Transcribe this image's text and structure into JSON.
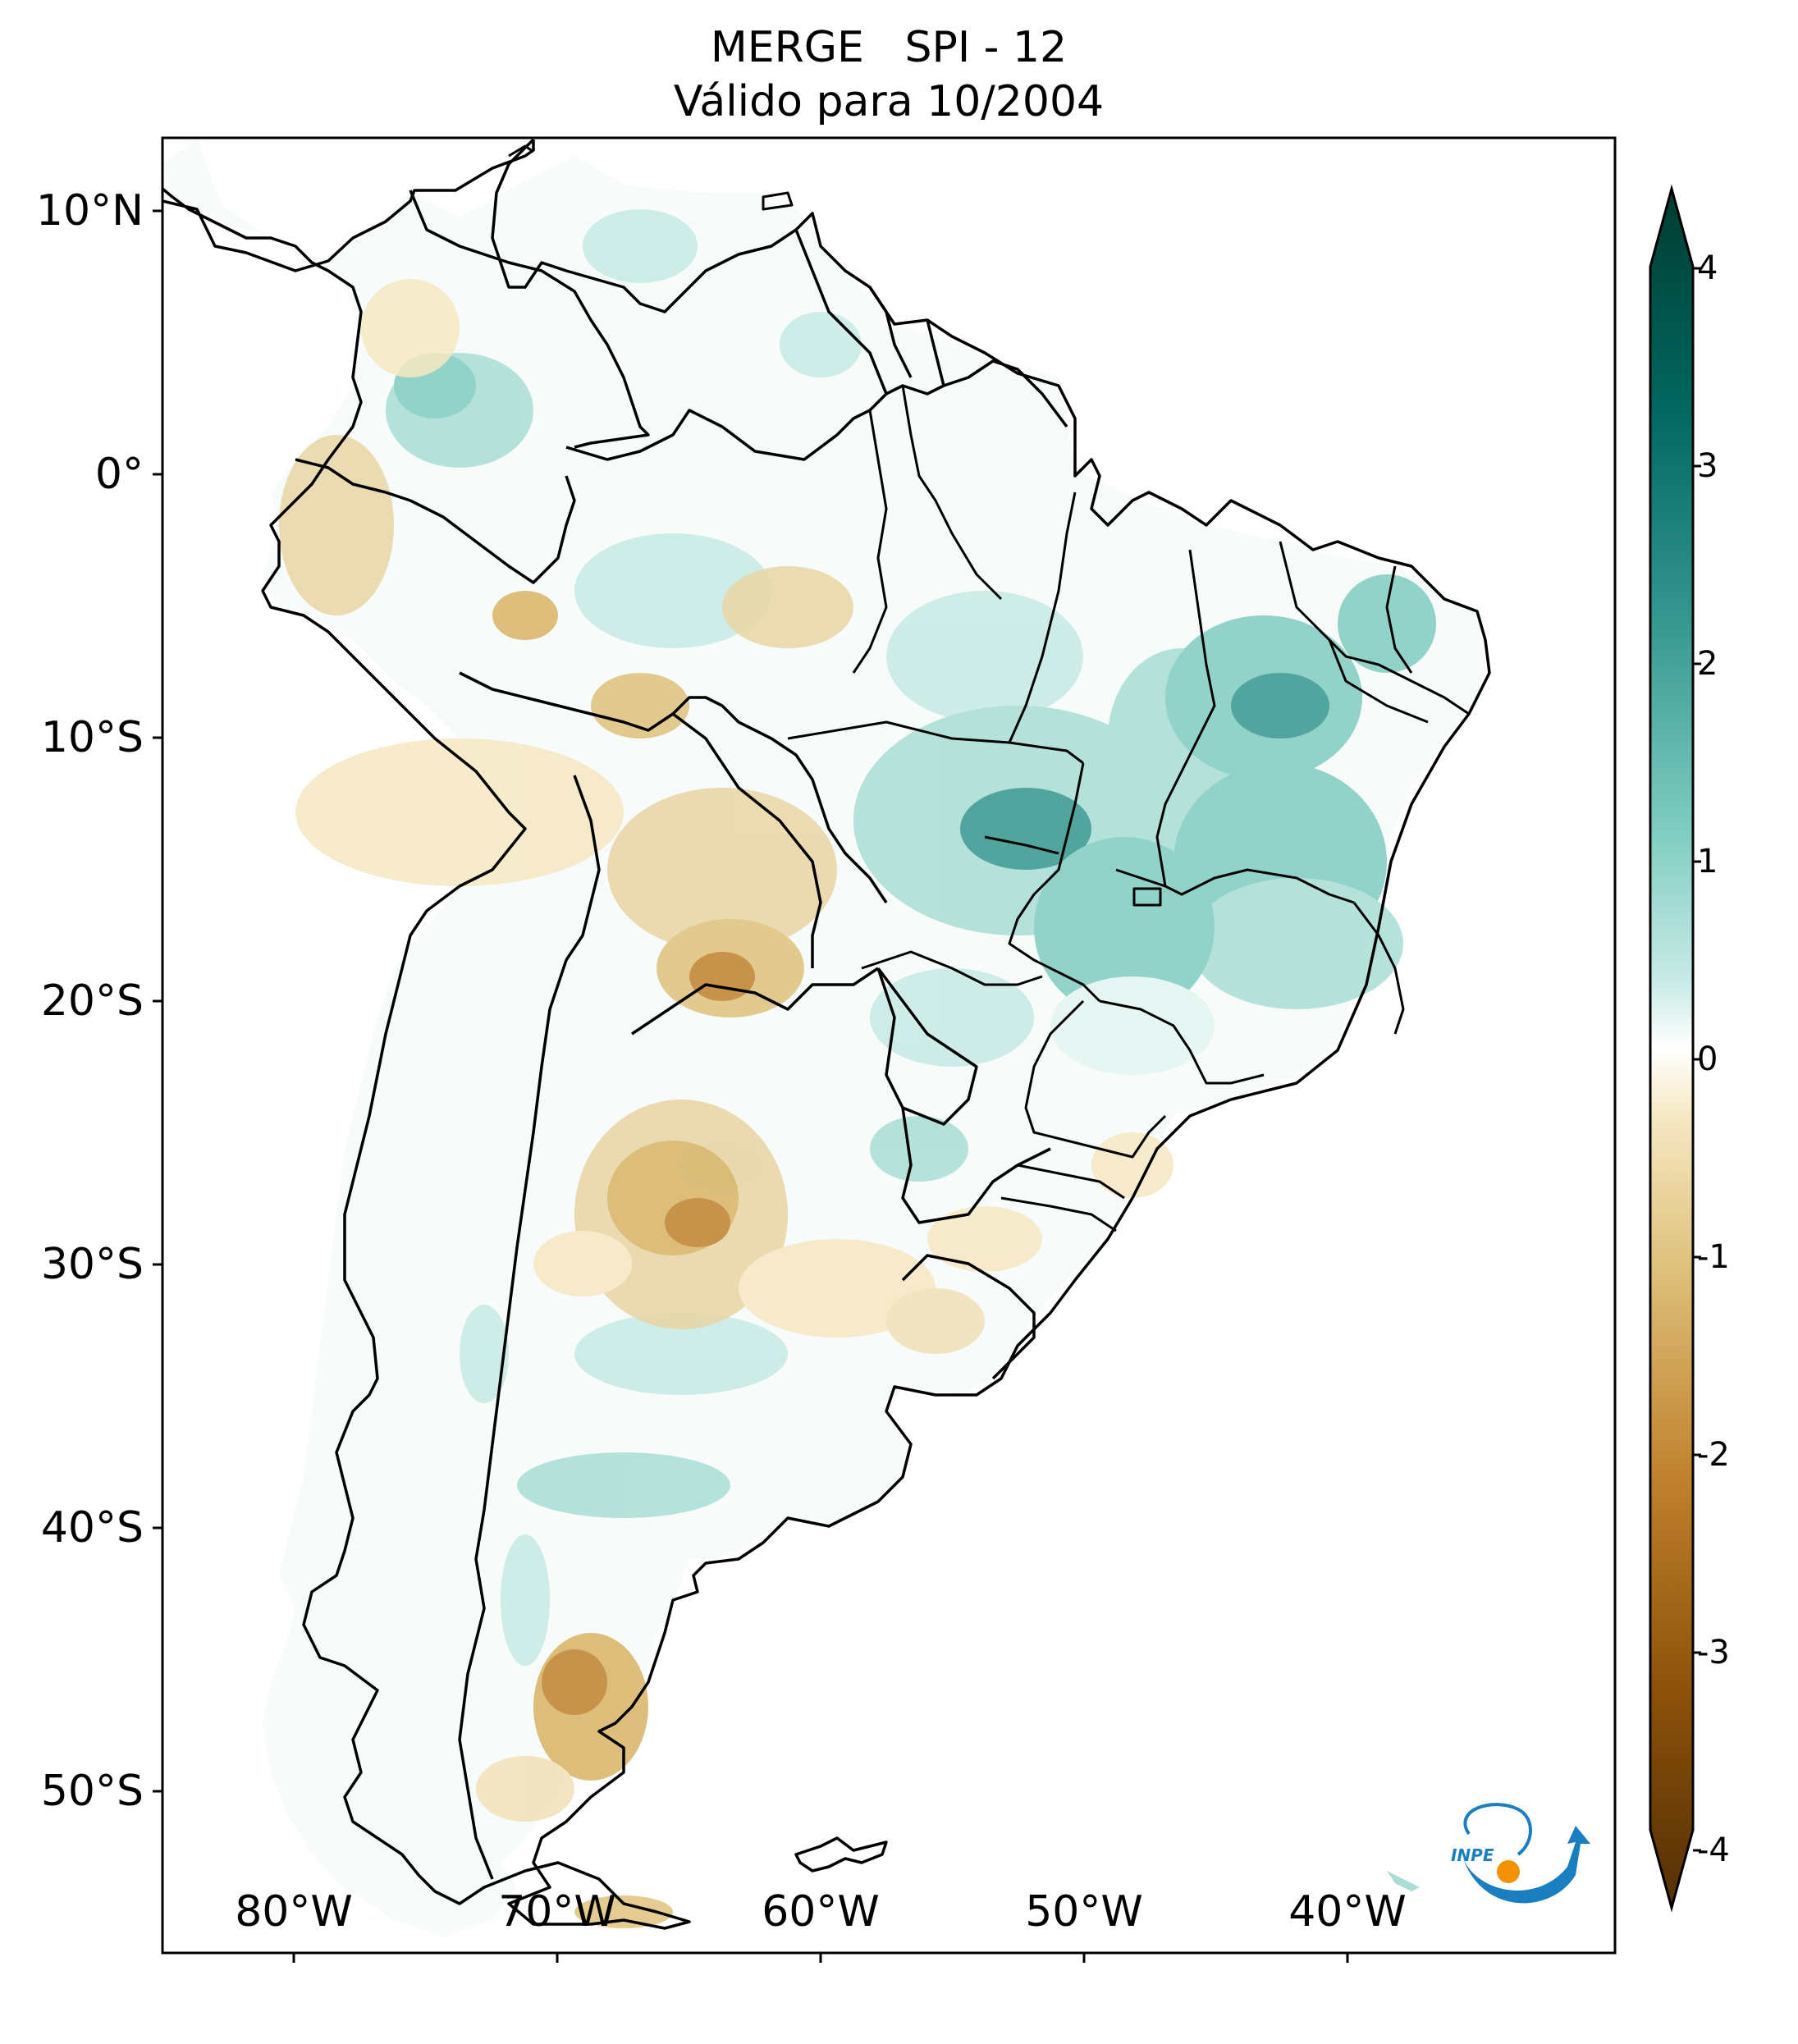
{
  "title": {
    "line1": "MERGE   SPI - 12",
    "line2": "Válido para 10/2004"
  },
  "map": {
    "lat_ticks": [
      "10°N",
      "0°",
      "10°S",
      "20°S",
      "30°S",
      "40°S",
      "50°S"
    ],
    "lon_ticks": [
      "80°W",
      "70°W",
      "60°W",
      "50°W",
      "40°W"
    ]
  },
  "colorbar": {
    "ticks": [
      "4",
      "3",
      "2",
      "1",
      "0",
      "-1",
      "-2",
      "-3",
      "-4"
    ],
    "colors": {
      "max": "#003c30",
      "high": "#01665e",
      "mid_high": "#5ab4ac",
      "low_high": "#c7eae5",
      "zero": "#f5f5f5",
      "low_low": "#f6e8c3",
      "mid_low": "#d8b365",
      "low": "#8c510a",
      "min": "#543005"
    }
  },
  "logo": {
    "text": "INPE",
    "colors": {
      "blue": "#1a7fc1",
      "orange": "#f39200"
    }
  }
}
